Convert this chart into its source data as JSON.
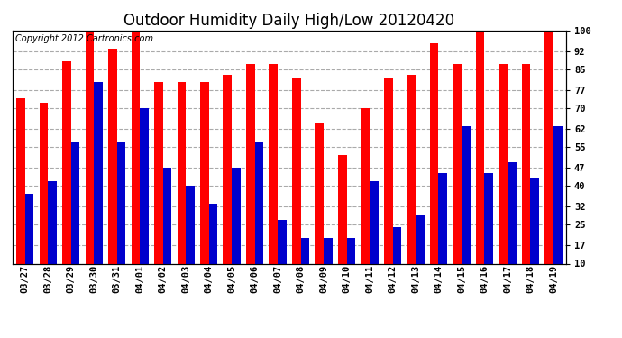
{
  "title": "Outdoor Humidity Daily High/Low 20120420",
  "copyright": "Copyright 2012 Cartronics.com",
  "categories": [
    "03/27",
    "03/28",
    "03/29",
    "03/30",
    "03/31",
    "04/01",
    "04/02",
    "04/03",
    "04/04",
    "04/05",
    "04/06",
    "04/07",
    "04/08",
    "04/09",
    "04/10",
    "04/11",
    "04/12",
    "04/13",
    "04/14",
    "04/15",
    "04/16",
    "04/17",
    "04/18",
    "04/19"
  ],
  "high_values": [
    74,
    72,
    88,
    100,
    93,
    100,
    80,
    80,
    80,
    83,
    87,
    87,
    82,
    64,
    52,
    70,
    82,
    83,
    95,
    87,
    100,
    87,
    87,
    100
  ],
  "low_values": [
    37,
    42,
    57,
    80,
    57,
    70,
    47,
    40,
    33,
    47,
    57,
    27,
    20,
    20,
    20,
    42,
    24,
    29,
    45,
    63,
    45,
    49,
    43,
    63
  ],
  "bar_color_high": "#ff0000",
  "bar_color_low": "#0000cc",
  "bg_color": "#ffffff",
  "plot_bg_color": "#ffffff",
  "grid_color": "#aaaaaa",
  "ylim_min": 10,
  "ylim_max": 100,
  "yticks": [
    10,
    17,
    25,
    32,
    40,
    47,
    55,
    62,
    70,
    77,
    85,
    92,
    100
  ],
  "title_fontsize": 12,
  "copyright_fontsize": 7,
  "tick_fontsize": 7.5
}
